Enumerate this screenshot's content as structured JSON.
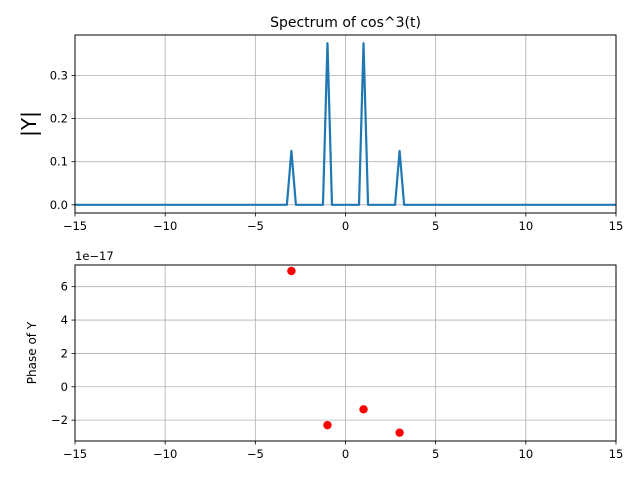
{
  "chart_data": [
    {
      "type": "line",
      "title": "Spectrum of cos^3(t)",
      "xlabel": "",
      "ylabel": "|Y|",
      "xlim": [
        -15,
        15
      ],
      "ylim": [
        -0.019,
        0.394
      ],
      "grid": true,
      "x_ticks": [
        -15,
        -10,
        -5,
        0,
        5,
        10,
        15
      ],
      "x_tick_labels": [
        "−15",
        "−10",
        "−5",
        "0",
        "5",
        "10",
        "15"
      ],
      "y_ticks": [
        0.0,
        0.1,
        0.2,
        0.3
      ],
      "y_tick_labels": [
        "0.0",
        "0.1",
        "0.2",
        "0.3"
      ],
      "line_color": "#1f77b4",
      "series": [
        {
          "x": [
            -15,
            -3.25,
            -3.0,
            -2.75,
            -1.25,
            -1.0,
            -0.75,
            0.75,
            1.0,
            1.25,
            2.75,
            3.0,
            3.25,
            15
          ],
          "y": [
            0,
            0,
            0.125,
            0,
            0,
            0.375,
            0,
            0,
            0.375,
            0,
            0,
            0.125,
            0,
            0
          ]
        }
      ]
    },
    {
      "type": "scatter",
      "title": "",
      "xlabel": "",
      "ylabel": "Phase of Y",
      "offset_text": "1e−17",
      "xlim": [
        -15,
        15
      ],
      "ylim": [
        -3.25,
        7.3
      ],
      "grid": true,
      "x_ticks": [
        -15,
        -10,
        -5,
        0,
        5,
        10,
        15
      ],
      "x_tick_labels": [
        "−15",
        "−10",
        "−5",
        "0",
        "5",
        "10",
        "15"
      ],
      "y_ticks": [
        -2,
        0,
        2,
        4,
        6
      ],
      "y_tick_labels": [
        "−2",
        "0",
        "2",
        "4",
        "6"
      ],
      "marker_color": "#ff0000",
      "series": [
        {
          "x": [
            -3,
            -1,
            1,
            3
          ],
          "y": [
            6.94,
            -2.3,
            -1.35,
            -2.75
          ]
        }
      ]
    }
  ]
}
